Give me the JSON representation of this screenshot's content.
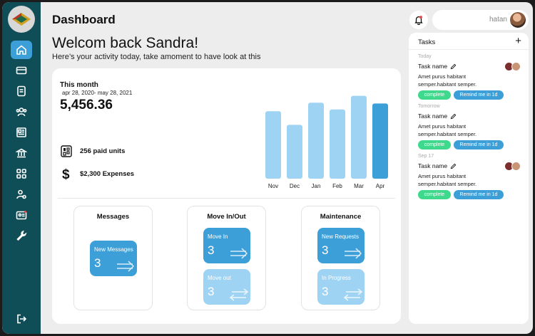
{
  "header": {
    "title": "Dashboard",
    "welcome": "Welcom back Sandra!",
    "subtitle": "Here’s your activity today, take amoment to have look at this",
    "username": "hatan"
  },
  "sidebar": {
    "items": [
      {
        "name": "home-icon",
        "active": true
      },
      {
        "name": "credit-card-icon",
        "active": false
      },
      {
        "name": "document-icon",
        "active": false
      },
      {
        "name": "users-icon",
        "active": false
      },
      {
        "name": "newspaper-icon",
        "active": false
      },
      {
        "name": "bank-icon",
        "active": false
      },
      {
        "name": "grid-icon",
        "active": false
      },
      {
        "name": "user-settings-icon",
        "active": false
      },
      {
        "name": "id-card-icon",
        "active": false
      },
      {
        "name": "wrench-icon",
        "active": false
      }
    ],
    "logout_icon": "logout-icon"
  },
  "summary": {
    "label": "This month",
    "range": "apr 28, 2020- may 28, 2021",
    "total": "5,456.36",
    "paid_units": "256 paid units",
    "expenses": "$2,300 Expenses"
  },
  "chart_data": {
    "type": "bar",
    "categories": [
      "Nov",
      "Dec",
      "Jan",
      "Feb",
      "Mar",
      "Apr"
    ],
    "values": [
      79,
      63,
      89,
      81,
      97,
      88
    ],
    "highlight_index": 5,
    "colors": {
      "bar": "#9fd3f4",
      "highlight": "#3d9fd8"
    }
  },
  "cards": [
    {
      "title": "Messages",
      "tiles": [
        {
          "label": "New Messages",
          "value": "3",
          "style": "dark"
        }
      ]
    },
    {
      "title": "Move In/Out",
      "tiles": [
        {
          "label": "Move In",
          "value": "3",
          "style": "dark"
        },
        {
          "label": "Move out",
          "value": "3",
          "style": "light"
        }
      ]
    },
    {
      "title": "Maintenance",
      "tiles": [
        {
          "label": "New Requests",
          "value": "3",
          "style": "dark"
        },
        {
          "label": "In Progress",
          "value": "3",
          "style": "light"
        }
      ]
    }
  ],
  "tasks": {
    "title": "Tasks",
    "add": "+",
    "items": [
      {
        "day": "Today",
        "name": "Task name",
        "desc": "Amet purus habitant semper.habitant semper.",
        "complete": "complete",
        "remind": "Remind me in 1d"
      },
      {
        "day": "Tomorrow",
        "name": "Task name",
        "desc": "Amet purus habitant semper.habitant semper.",
        "complete": "complete",
        "remind": "Remind me in 1d"
      },
      {
        "day": "Sep 17",
        "name": "Task name",
        "desc": "Amet purus habitant semper.habitant semper.",
        "complete": "complete",
        "remind": "Remind me in 1d"
      }
    ]
  },
  "colors": {
    "sidebar": "#0f4d57",
    "accent": "#3d9fd8",
    "light_accent": "#9fd3f4",
    "success": "#3fd98d"
  }
}
